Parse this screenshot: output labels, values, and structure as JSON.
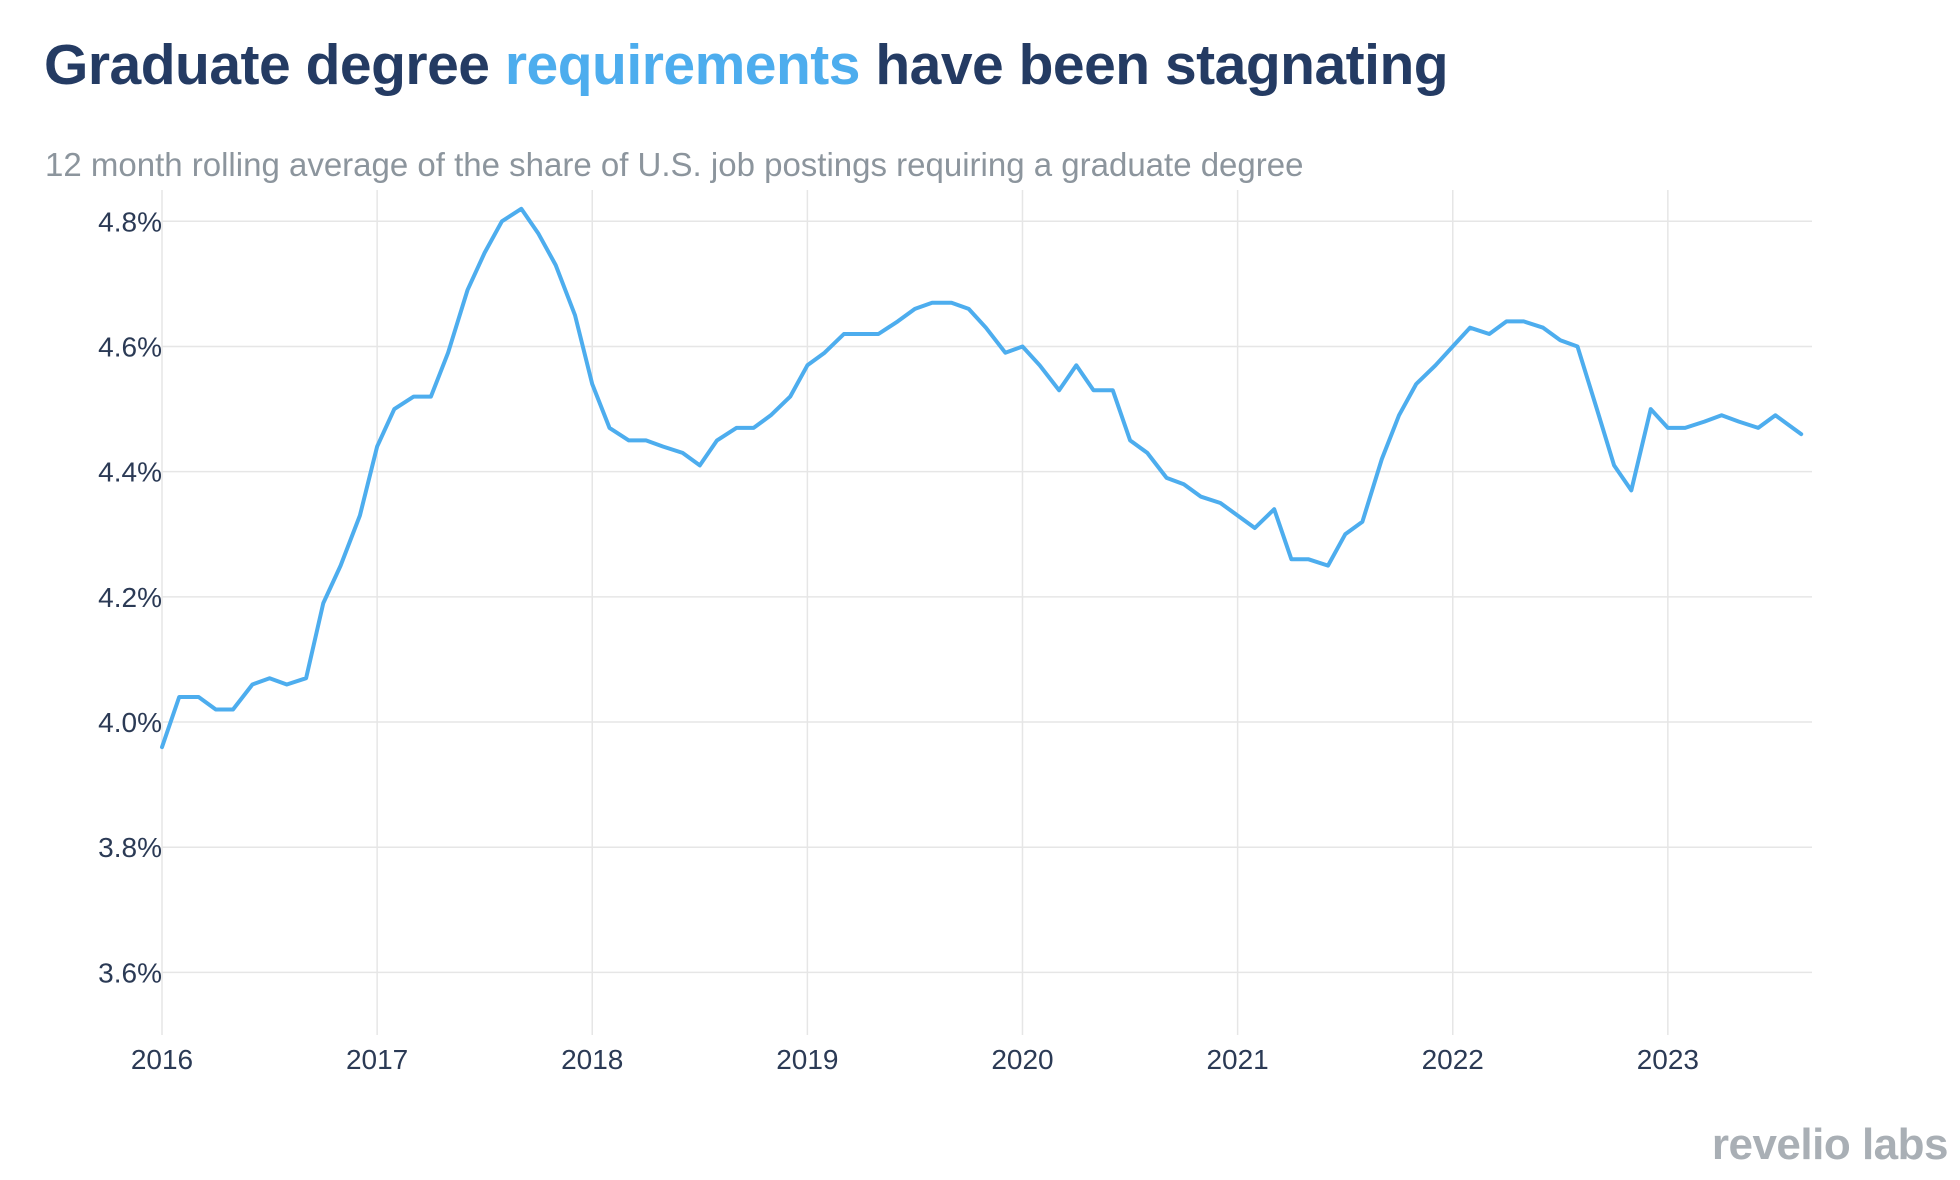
{
  "header": {
    "title_part1": "Graduate degree",
    "title_accent": "requirements",
    "title_part2": "have been stagnating",
    "subtitle": "12 month rolling average of the share of U.S. job postings requiring a graduate degree"
  },
  "brand": {
    "logo_text": "revelio labs"
  },
  "colors": {
    "line": "#4dadee",
    "title": "#243b63",
    "accent": "#4dadee",
    "grid": "#e6e6e6",
    "subtitle": "#8c959d"
  },
  "chart_data": {
    "type": "line",
    "title": "Graduate degree requirements have been stagnating",
    "subtitle": "12 month rolling average of the share of U.S. job postings requiring a graduate degree",
    "xlabel": "",
    "ylabel": "",
    "xlim": [
      2016.0,
      2023.67
    ],
    "ylim": [
      3.5,
      4.85
    ],
    "grid": true,
    "x_ticks": [
      2016,
      2017,
      2018,
      2019,
      2020,
      2021,
      2022,
      2023
    ],
    "x_tick_labels": [
      "2016",
      "2017",
      "2018",
      "2019",
      "2020",
      "2021",
      "2022",
      "2023"
    ],
    "y_ticks": [
      3.6,
      3.8,
      4.0,
      4.2,
      4.4,
      4.6,
      4.8
    ],
    "y_tick_labels": [
      "3.6%",
      "3.8%",
      "4.0%",
      "4.2%",
      "4.4%",
      "4.6%",
      "4.8%"
    ],
    "series": [
      {
        "name": "Share of U.S. job postings requiring a graduate degree (%)",
        "x": [
          2016.0,
          2016.08,
          2016.17,
          2016.25,
          2016.33,
          2016.42,
          2016.5,
          2016.58,
          2016.67,
          2016.75,
          2016.83,
          2016.92,
          2017.0,
          2017.08,
          2017.17,
          2017.25,
          2017.33,
          2017.42,
          2017.5,
          2017.58,
          2017.67,
          2017.75,
          2017.83,
          2017.92,
          2018.0,
          2018.08,
          2018.17,
          2018.25,
          2018.33,
          2018.42,
          2018.5,
          2018.58,
          2018.67,
          2018.75,
          2018.83,
          2018.92,
          2019.0,
          2019.08,
          2019.17,
          2019.25,
          2019.33,
          2019.42,
          2019.5,
          2019.58,
          2019.67,
          2019.75,
          2019.83,
          2019.92,
          2020.0,
          2020.08,
          2020.17,
          2020.25,
          2020.33,
          2020.42,
          2020.5,
          2020.58,
          2020.67,
          2020.75,
          2020.83,
          2020.92,
          2021.0,
          2021.08,
          2021.17,
          2021.25,
          2021.33,
          2021.42,
          2021.5,
          2021.58,
          2021.67,
          2021.75,
          2021.83,
          2021.92,
          2022.0,
          2022.08,
          2022.17,
          2022.25,
          2022.33,
          2022.42,
          2022.5,
          2022.58,
          2022.67,
          2022.75,
          2022.83,
          2022.92,
          2023.0,
          2023.08,
          2023.17,
          2023.25,
          2023.33,
          2023.42,
          2023.5,
          2023.58,
          2023.62
        ],
        "values": [
          3.96,
          4.04,
          4.04,
          4.02,
          4.02,
          4.06,
          4.07,
          4.06,
          4.07,
          4.19,
          4.25,
          4.33,
          4.44,
          4.5,
          4.52,
          4.52,
          4.59,
          4.69,
          4.75,
          4.8,
          4.82,
          4.78,
          4.73,
          4.65,
          4.54,
          4.47,
          4.45,
          4.45,
          4.44,
          4.43,
          4.41,
          4.45,
          4.47,
          4.47,
          4.49,
          4.52,
          4.57,
          4.59,
          4.62,
          4.62,
          4.62,
          4.64,
          4.66,
          4.67,
          4.67,
          4.66,
          4.63,
          4.59,
          4.6,
          4.57,
          4.53,
          4.57,
          4.53,
          4.53,
          4.45,
          4.43,
          4.39,
          4.38,
          4.36,
          4.35,
          4.33,
          4.31,
          4.34,
          4.26,
          4.26,
          4.25,
          4.3,
          4.32,
          4.42,
          4.49,
          4.54,
          4.57,
          4.6,
          4.63,
          4.62,
          4.64,
          4.64,
          4.63,
          4.61,
          4.6,
          4.5,
          4.41,
          4.37,
          4.5,
          4.47,
          4.47,
          4.48,
          4.49,
          4.48,
          4.47,
          4.49,
          4.47,
          4.46
        ]
      }
    ]
  }
}
